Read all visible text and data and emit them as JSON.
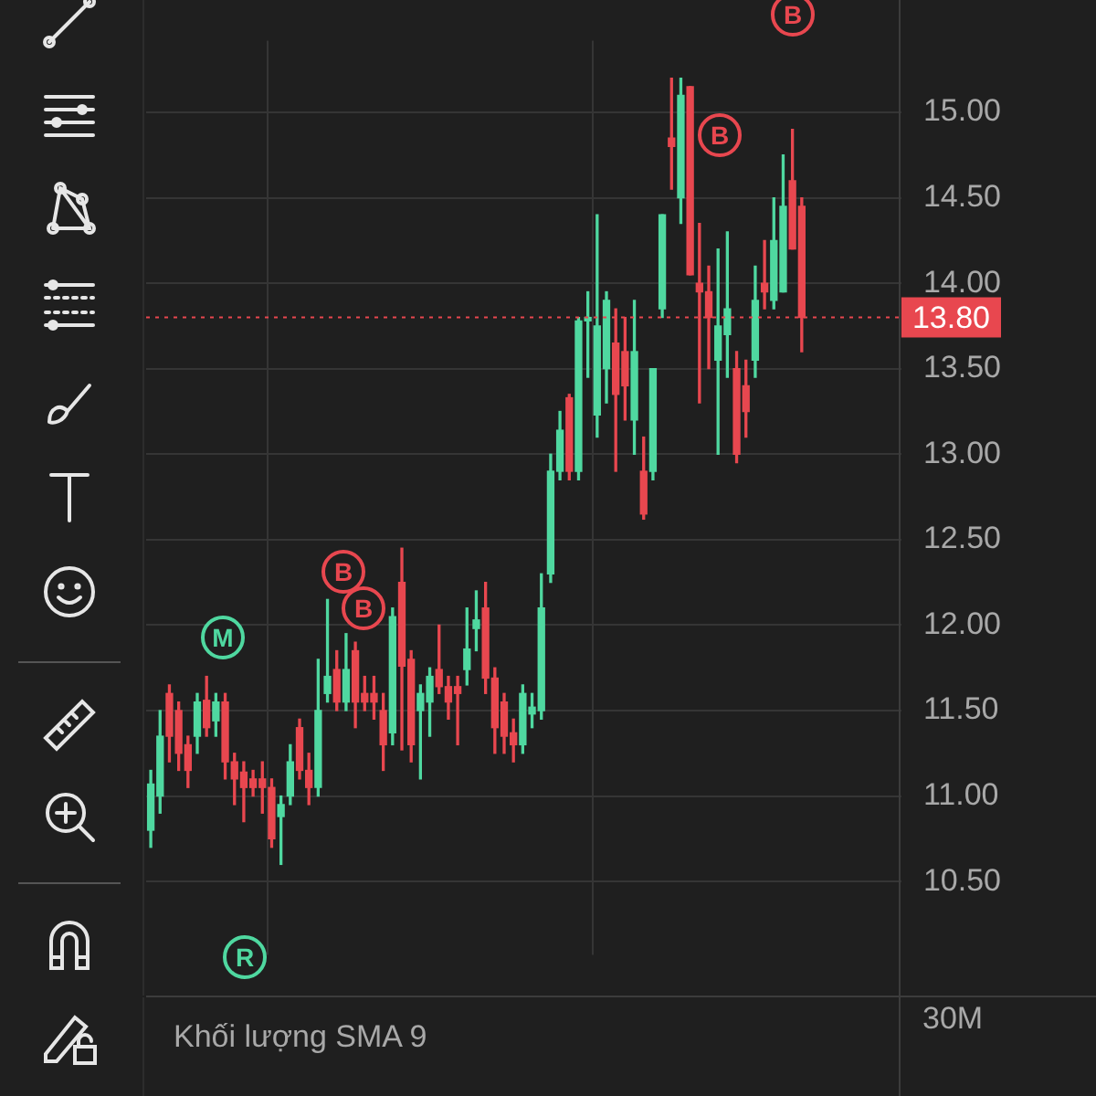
{
  "chart_data": {
    "type": "candlestick",
    "categories": [
      null,
      null,
      null,
      null,
      null,
      null,
      null,
      null,
      null,
      null,
      null,
      null,
      null,
      null,
      null,
      null,
      null,
      null,
      null,
      null,
      null,
      null,
      null,
      null,
      null,
      null,
      null,
      null,
      null,
      null,
      null,
      null,
      null,
      null,
      null,
      null,
      null,
      null,
      null,
      null,
      null,
      null,
      null,
      null,
      null,
      null,
      null,
      null,
      null,
      null,
      null,
      null,
      null,
      null,
      null,
      null,
      null,
      null,
      null,
      null,
      null,
      null,
      null,
      null,
      null,
      null,
      null,
      null,
      null,
      null,
      null
    ],
    "ohlc": [
      [
        10.8,
        11.15,
        10.7,
        11.07
      ],
      [
        11.0,
        11.5,
        10.9,
        11.35
      ],
      [
        11.6,
        11.65,
        11.2,
        11.35
      ],
      [
        11.5,
        11.55,
        11.15,
        11.25
      ],
      [
        11.3,
        11.35,
        11.05,
        11.15
      ],
      [
        11.35,
        11.6,
        11.25,
        11.55
      ],
      [
        11.56,
        11.7,
        11.35,
        11.4
      ],
      [
        11.44,
        11.6,
        11.35,
        11.55
      ],
      [
        11.55,
        11.6,
        11.1,
        11.2
      ],
      [
        11.2,
        11.25,
        10.95,
        11.1
      ],
      [
        11.14,
        11.2,
        10.85,
        11.05
      ],
      [
        11.1,
        11.15,
        11.0,
        11.05
      ],
      [
        11.1,
        11.2,
        10.9,
        11.05
      ],
      [
        11.05,
        11.1,
        10.7,
        10.75
      ],
      [
        10.88,
        11.0,
        10.6,
        10.95
      ],
      [
        11.0,
        11.3,
        10.95,
        11.2
      ],
      [
        11.4,
        11.45,
        11.1,
        11.15
      ],
      [
        11.15,
        11.25,
        10.95,
        11.05
      ],
      [
        11.05,
        11.8,
        11.0,
        11.5
      ],
      [
        11.6,
        12.15,
        11.55,
        11.7
      ],
      [
        11.74,
        11.85,
        11.5,
        11.55
      ],
      [
        11.55,
        11.95,
        11.5,
        11.74
      ],
      [
        11.85,
        11.9,
        11.4,
        11.55
      ],
      [
        11.6,
        11.7,
        11.5,
        11.55
      ],
      [
        11.6,
        11.7,
        11.45,
        11.55
      ],
      [
        11.5,
        11.6,
        11.15,
        11.3
      ],
      [
        11.37,
        12.1,
        11.3,
        12.05
      ],
      [
        12.25,
        12.45,
        11.27,
        11.76
      ],
      [
        11.8,
        11.85,
        11.2,
        11.3
      ],
      [
        11.5,
        11.65,
        11.1,
        11.6
      ],
      [
        11.55,
        11.75,
        11.35,
        11.7
      ],
      [
        11.74,
        12.0,
        11.6,
        11.64
      ],
      [
        11.64,
        11.7,
        11.45,
        11.55
      ],
      [
        11.64,
        11.7,
        11.3,
        11.6
      ],
      [
        11.74,
        12.1,
        11.65,
        11.86
      ],
      [
        11.98,
        12.2,
        11.85,
        12.03
      ],
      [
        12.1,
        12.25,
        11.6,
        11.69
      ],
      [
        11.69,
        11.75,
        11.25,
        11.4
      ],
      [
        11.55,
        11.6,
        11.25,
        11.35
      ],
      [
        11.37,
        11.45,
        11.2,
        11.3
      ],
      [
        11.3,
        11.65,
        11.25,
        11.6
      ],
      [
        11.48,
        11.6,
        11.4,
        11.52
      ],
      [
        11.5,
        12.3,
        11.45,
        12.1
      ],
      [
        12.3,
        13.0,
        12.25,
        12.9
      ],
      [
        12.9,
        13.25,
        12.85,
        13.14
      ],
      [
        13.33,
        13.35,
        12.85,
        12.9
      ],
      [
        12.9,
        13.8,
        12.85,
        13.78
      ],
      [
        13.78,
        13.95,
        13.45,
        13.8
      ],
      [
        13.23,
        14.4,
        13.1,
        13.75
      ],
      [
        13.5,
        13.95,
        13.3,
        13.9
      ],
      [
        13.65,
        13.85,
        12.9,
        13.35
      ],
      [
        13.6,
        13.8,
        13.2,
        13.4
      ],
      [
        13.2,
        13.9,
        13.0,
        13.6
      ],
      [
        12.9,
        13.1,
        12.62,
        12.65
      ],
      [
        12.9,
        13.5,
        12.85,
        13.5
      ],
      [
        13.85,
        14.4,
        13.8,
        14.4
      ],
      [
        14.85,
        15.2,
        14.55,
        14.8
      ],
      [
        14.5,
        15.2,
        14.35,
        15.1
      ],
      [
        15.15,
        15.15,
        14.05,
        14.05
      ],
      [
        14.0,
        14.35,
        13.3,
        13.95
      ],
      [
        13.95,
        14.1,
        13.5,
        13.8
      ],
      [
        13.55,
        14.2,
        13.0,
        13.75
      ],
      [
        13.7,
        14.3,
        13.45,
        13.85
      ],
      [
        13.5,
        13.6,
        12.95,
        13.0
      ],
      [
        13.4,
        13.55,
        13.1,
        13.25
      ],
      [
        13.55,
        14.1,
        13.45,
        13.9
      ],
      [
        14.0,
        14.25,
        13.85,
        13.95
      ],
      [
        13.9,
        14.5,
        13.85,
        14.25
      ],
      [
        13.95,
        14.75,
        13.95,
        14.45
      ],
      [
        14.6,
        14.9,
        14.2,
        14.2
      ],
      [
        14.45,
        14.5,
        13.6,
        13.8
      ]
    ],
    "ylim": [
      10.07,
      15.42
    ],
    "yticks": [
      {
        "value": 10.5,
        "label": "10.50"
      },
      {
        "value": 11,
        "label": "11.00"
      },
      {
        "value": 11.5,
        "label": "11.50"
      },
      {
        "value": 12,
        "label": "12.00"
      },
      {
        "value": 12.5,
        "label": "12.50"
      },
      {
        "value": 13,
        "label": "13.00"
      },
      {
        "value": 13.5,
        "label": "13.50"
      },
      {
        "value": 14,
        "label": "14.00"
      },
      {
        "value": 14.5,
        "label": "14.50"
      },
      {
        "value": 15,
        "label": "15.00"
      }
    ],
    "tick_labels": "y",
    "grid": true,
    "ref_lines": [
      {
        "axis": "y",
        "value": 13.8,
        "label": "13.80",
        "color": "#e8474f",
        "line_style": "dotted"
      }
    ],
    "annotations": [
      "B",
      "B",
      "B",
      "B",
      "M",
      "R",
      "Khối lượng SMA 9",
      "30M"
    ]
  }
}
